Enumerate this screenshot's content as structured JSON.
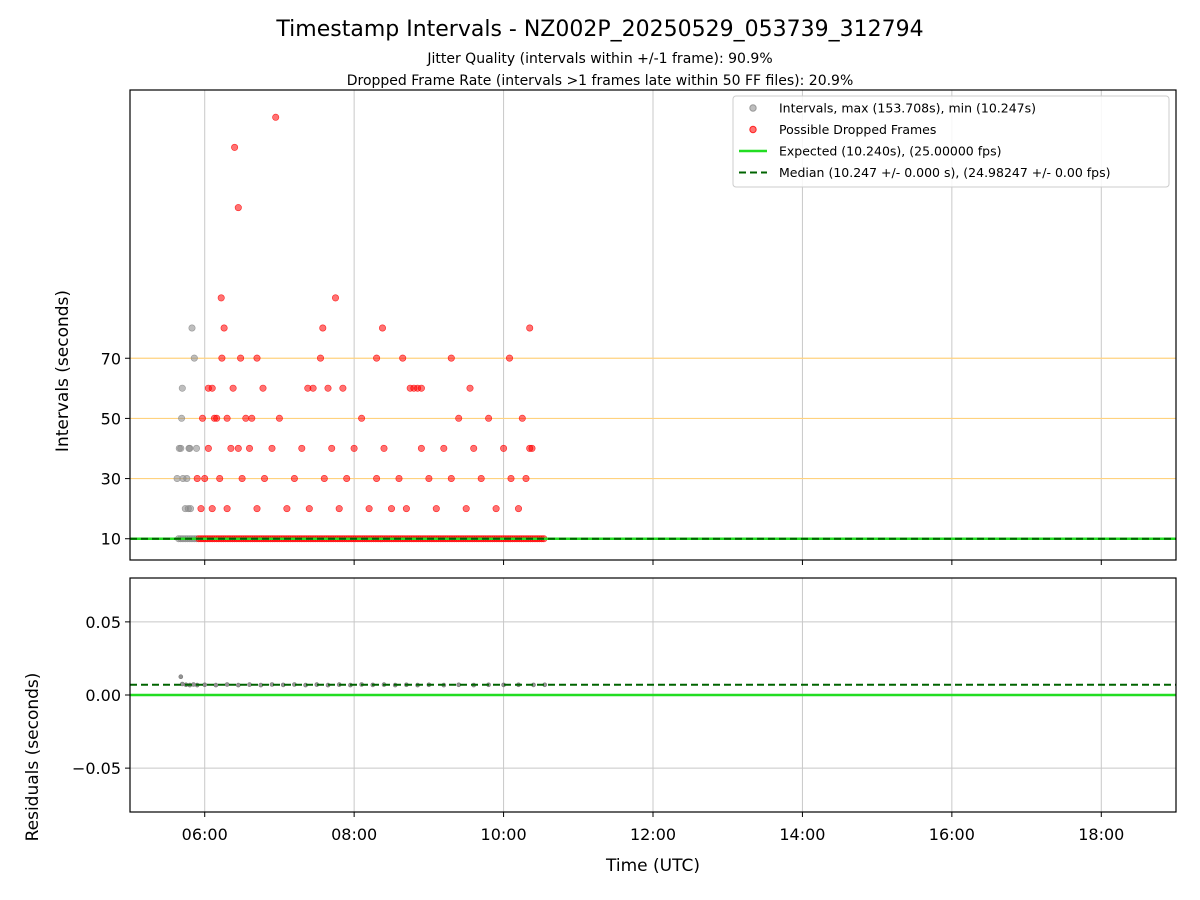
{
  "chart_data": {
    "title": "Timestamp Intervals - NZ002P_20250529_053739_312794",
    "subtitle_1": "Jitter Quality (intervals within +/-1 frame): 90.9%",
    "subtitle_2": "Dropped Frame Rate (intervals >1 frames late within 50 FF files): 20.9%",
    "xlabel": "Time (UTC)",
    "x_unit": "hours UTC",
    "xlim": [
      5.0,
      19.0
    ],
    "x_ticks": [
      {
        "value": 6,
        "label": "06:00"
      },
      {
        "value": 8,
        "label": "08:00"
      },
      {
        "value": 10,
        "label": "10:00"
      },
      {
        "value": 12,
        "label": "12:00"
      },
      {
        "value": 14,
        "label": "14:00"
      },
      {
        "value": 16,
        "label": "16:00"
      },
      {
        "value": 18,
        "label": "18:00"
      }
    ],
    "top": {
      "type": "scatter",
      "ylabel": "Intervals (seconds)",
      "ylim": [
        3.0,
        163.0
      ],
      "y_ticks": [
        {
          "value": 10.24,
          "label": "10"
        },
        {
          "value": 30.72,
          "label": "30"
        },
        {
          "value": 51.2,
          "label": "50"
        },
        {
          "value": 71.68,
          "label": "70"
        }
      ],
      "reference_lines": [
        {
          "value": 30.72,
          "color": "#ffd27f"
        },
        {
          "value": 51.2,
          "color": "#ffd27f"
        },
        {
          "value": 71.68,
          "color": "#ffd27f"
        }
      ],
      "expected_value": 10.24,
      "median_value": 10.247,
      "legend": {
        "placement": "top-right",
        "entries": [
          {
            "label": "Intervals, max (153.708s), min (10.247s)",
            "marker": "dot",
            "color": "#888888"
          },
          {
            "label": "Possible Dropped Frames",
            "marker": "dot",
            "color": "#ff0000"
          },
          {
            "label": "Expected (10.240s), (25.00000 fps)",
            "marker": "line",
            "color": "#22dd22"
          },
          {
            "label": "Median (10.247 +/- 0.000 s), (24.98247 +/- 0.00 fps)",
            "marker": "dashed",
            "color": "#006400"
          }
        ]
      },
      "series": [
        {
          "name": "Intervals, max (153.708s), min (10.247s)",
          "color": "#888888",
          "points": [
            [
              5.63,
              30.73
            ],
            [
              5.66,
              41.0
            ],
            [
              5.68,
              40.98
            ],
            [
              5.69,
              51.24
            ],
            [
              5.7,
              61.5
            ],
            [
              5.71,
              30.73
            ],
            [
              5.74,
              20.49
            ],
            [
              5.76,
              30.73
            ],
            [
              5.78,
              20.49
            ],
            [
              5.79,
              40.98
            ],
            [
              5.8,
              40.98
            ],
            [
              5.81,
              20.49
            ],
            [
              5.83,
              81.97
            ],
            [
              5.86,
              71.73
            ],
            [
              5.89,
              40.98
            ]
          ]
        },
        {
          "name": "Possible Dropped Frames",
          "color": "#ff0000",
          "points": [
            [
              5.97,
              51.24
            ],
            [
              6.05,
              61.5
            ],
            [
              6.1,
              61.5
            ],
            [
              6.13,
              51.24
            ],
            [
              6.16,
              51.24
            ],
            [
              6.22,
              92.22
            ],
            [
              6.23,
              71.73
            ],
            [
              6.26,
              81.97
            ],
            [
              6.3,
              51.24
            ],
            [
              6.38,
              61.5
            ],
            [
              6.4,
              143.45
            ],
            [
              6.45,
              40.98
            ],
            [
              6.45,
              122.96
            ],
            [
              6.48,
              71.73
            ],
            [
              6.55,
              51.24
            ],
            [
              6.63,
              51.24
            ],
            [
              6.7,
              71.73
            ],
            [
              6.78,
              61.5
            ],
            [
              6.95,
              153.71
            ],
            [
              7.38,
              61.5
            ],
            [
              7.45,
              61.5
            ],
            [
              7.55,
              71.73
            ],
            [
              7.58,
              81.97
            ],
            [
              7.65,
              61.5
            ],
            [
              7.75,
              92.22
            ],
            [
              7.85,
              61.5
            ],
            [
              8.3,
              71.73
            ],
            [
              8.38,
              81.97
            ],
            [
              8.65,
              71.73
            ],
            [
              8.75,
              61.5
            ],
            [
              8.8,
              61.5
            ],
            [
              8.85,
              61.5
            ],
            [
              8.9,
              61.5
            ],
            [
              9.3,
              71.73
            ],
            [
              9.55,
              61.5
            ],
            [
              10.08,
              71.73
            ],
            [
              10.35,
              81.97
            ],
            [
              5.9,
              30.73
            ],
            [
              5.95,
              20.49
            ],
            [
              6.0,
              30.73
            ],
            [
              6.05,
              40.98
            ],
            [
              6.1,
              20.49
            ],
            [
              6.2,
              30.73
            ],
            [
              6.3,
              20.49
            ],
            [
              6.35,
              40.98
            ],
            [
              6.5,
              30.73
            ],
            [
              6.6,
              40.98
            ],
            [
              6.7,
              20.49
            ],
            [
              6.8,
              30.73
            ],
            [
              6.9,
              40.98
            ],
            [
              7.0,
              51.24
            ],
            [
              7.1,
              20.49
            ],
            [
              7.2,
              30.73
            ],
            [
              7.3,
              40.98
            ],
            [
              7.4,
              20.49
            ],
            [
              7.6,
              30.73
            ],
            [
              7.7,
              40.98
            ],
            [
              7.8,
              20.49
            ],
            [
              7.9,
              30.73
            ],
            [
              8.0,
              40.98
            ],
            [
              8.1,
              51.24
            ],
            [
              8.2,
              20.49
            ],
            [
              8.3,
              30.73
            ],
            [
              8.4,
              40.98
            ],
            [
              8.5,
              20.49
            ],
            [
              8.6,
              30.73
            ],
            [
              8.7,
              20.49
            ],
            [
              8.9,
              40.98
            ],
            [
              9.0,
              30.73
            ],
            [
              9.1,
              20.49
            ],
            [
              9.2,
              40.98
            ],
            [
              9.3,
              30.73
            ],
            [
              9.4,
              51.24
            ],
            [
              9.5,
              20.49
            ],
            [
              9.6,
              40.98
            ],
            [
              9.7,
              30.73
            ],
            [
              9.8,
              51.24
            ],
            [
              9.9,
              20.49
            ],
            [
              10.0,
              40.98
            ],
            [
              10.1,
              30.73
            ],
            [
              10.2,
              20.49
            ],
            [
              10.25,
              51.24
            ],
            [
              10.3,
              30.73
            ],
            [
              10.35,
              40.98
            ],
            [
              10.38,
              40.98
            ]
          ]
        }
      ]
    },
    "bottom": {
      "type": "scatter",
      "ylabel": "Residuals (seconds)",
      "ylim": [
        -0.08,
        0.08
      ],
      "y_ticks": [
        {
          "value": 0.05,
          "label": "0.05"
        },
        {
          "value": 0.0,
          "label": "0.00"
        },
        {
          "value": -0.05,
          "label": "−0.05"
        }
      ],
      "expected_value": 0.0,
      "median_value": 0.007,
      "series": [
        {
          "name": "Residuals",
          "color": "#666666",
          "points": [
            [
              5.68,
              0.0125
            ],
            [
              5.7,
              0.0075
            ],
            [
              5.75,
              0.007
            ],
            [
              5.8,
              0.0068
            ],
            [
              5.85,
              0.0072
            ],
            [
              5.9,
              0.0068
            ],
            [
              6.0,
              0.007
            ],
            [
              6.15,
              0.0068
            ],
            [
              6.3,
              0.0072
            ],
            [
              6.45,
              0.0068
            ],
            [
              6.6,
              0.0071
            ],
            [
              6.75,
              0.0068
            ],
            [
              6.9,
              0.0072
            ],
            [
              7.05,
              0.0069
            ],
            [
              7.2,
              0.0072
            ],
            [
              7.35,
              0.0068
            ],
            [
              7.5,
              0.0071
            ],
            [
              7.65,
              0.0068
            ],
            [
              7.8,
              0.0071
            ],
            [
              7.95,
              0.0068
            ],
            [
              8.1,
              0.0072
            ],
            [
              8.25,
              0.0069
            ],
            [
              8.4,
              0.0071
            ],
            [
              8.55,
              0.0068
            ],
            [
              8.7,
              0.007
            ],
            [
              8.85,
              0.0068
            ],
            [
              9.0,
              0.007
            ],
            [
              9.2,
              0.0068
            ],
            [
              9.4,
              0.007
            ],
            [
              9.6,
              0.0068
            ],
            [
              9.8,
              0.007
            ],
            [
              10.0,
              0.0069
            ],
            [
              10.2,
              0.007
            ],
            [
              10.4,
              0.0069
            ],
            [
              10.55,
              0.007
            ]
          ]
        }
      ]
    }
  }
}
